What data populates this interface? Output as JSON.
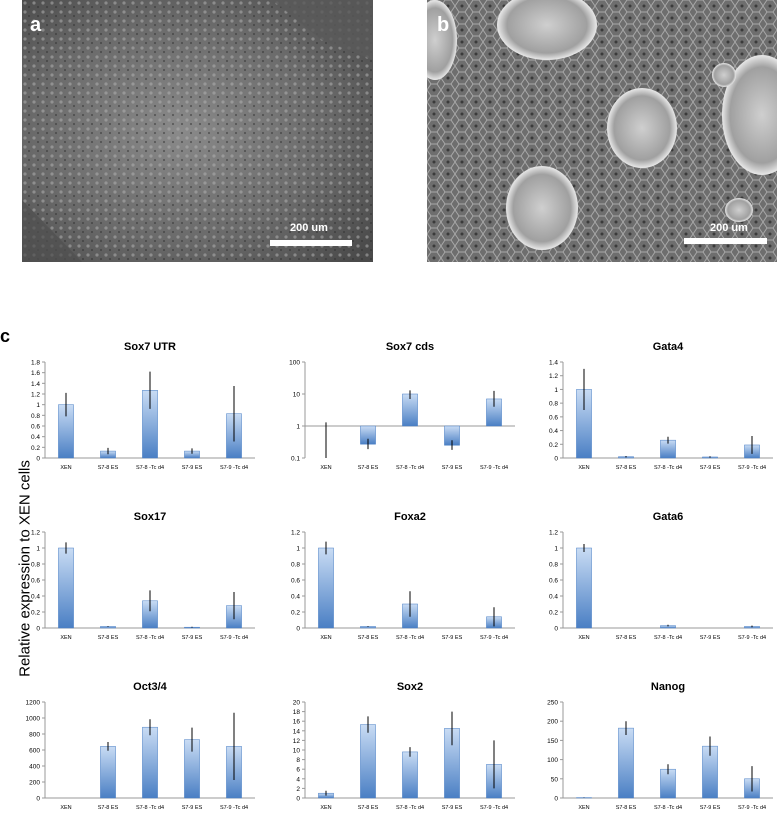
{
  "figure": {
    "panel_a": {
      "letter": "a",
      "scale_label": "200 um"
    },
    "panel_b": {
      "letter": "b",
      "scale_label": "200 um"
    },
    "panel_c": {
      "letter": "c"
    },
    "ylabel": "Relative expression to XEN cells",
    "colors": {
      "bar_top": "#c9dcf4",
      "bar_bottom": "#4a7fc4",
      "error_bar": "#000000",
      "axis": "#999999"
    }
  },
  "chart_data": [
    {
      "type": "bar",
      "title": "Sox7 UTR",
      "categories": [
        "XEN",
        "S7-8 ES",
        "S7-8 -Tc d4",
        "S7-9 ES",
        "S7-9 -Tc d4"
      ],
      "values": [
        1.0,
        0.13,
        1.27,
        0.13,
        0.83
      ],
      "errors": [
        0.22,
        0.06,
        0.35,
        0.05,
        0.52
      ],
      "ylim": [
        0,
        1.8
      ],
      "yticks": [
        0,
        0.2,
        0.4,
        0.6,
        0.8,
        1,
        1.2,
        1.4,
        1.6,
        1.8
      ],
      "ytick_labels": [
        "0",
        "0.2",
        "0.4",
        "0.6",
        "0.8",
        "1",
        "1.2",
        "1.4",
        "1.6",
        "1.8"
      ],
      "yscale": "linear"
    },
    {
      "type": "bar",
      "title": "Sox7 cds",
      "categories": [
        "XEN",
        "S7-8 ES",
        "S7-8 -Tc d4",
        "S7-9 ES",
        "S7-9 -Tc d4"
      ],
      "values": [
        1.0,
        0.27,
        10.0,
        0.25,
        7.0
      ],
      "errors_low": [
        0.0,
        0.19,
        7.0,
        0.18,
        4.0
      ],
      "errors_high": [
        1.3,
        0.4,
        13.0,
        0.36,
        12.5
      ],
      "ylim": [
        0.1,
        100
      ],
      "yticks": [
        0.1,
        1,
        10,
        100
      ],
      "ytick_labels": [
        "0.1",
        "1",
        "10",
        "100"
      ],
      "yscale": "log"
    },
    {
      "type": "bar",
      "title": "Gata4",
      "categories": [
        "XEN",
        "S7-8 ES",
        "S7-8 -Tc d4",
        "S7-9 ES",
        "S7-9 -Tc d4"
      ],
      "values": [
        1.0,
        0.02,
        0.26,
        0.015,
        0.19
      ],
      "errors": [
        0.3,
        0.01,
        0.05,
        0.01,
        0.13
      ],
      "ylim": [
        0,
        1.4
      ],
      "yticks": [
        0,
        0.2,
        0.4,
        0.6,
        0.8,
        1,
        1.2,
        1.4
      ],
      "ytick_labels": [
        "0",
        "0.2",
        "0.4",
        "0.6",
        "0.8",
        "1",
        "1.2",
        "1.4"
      ],
      "yscale": "linear"
    },
    {
      "type": "bar",
      "title": "Sox17",
      "categories": [
        "XEN",
        "S7-8 ES",
        "S7-8 -Tc d4",
        "S7-9 ES",
        "S7-9 -Tc d4"
      ],
      "values": [
        1.0,
        0.02,
        0.34,
        0.01,
        0.28
      ],
      "errors": [
        0.07,
        0.005,
        0.13,
        0.005,
        0.17
      ],
      "ylim": [
        0,
        1.2
      ],
      "yticks": [
        0,
        0.2,
        0.4,
        0.6,
        0.8,
        1,
        1.2
      ],
      "ytick_labels": [
        "0",
        "0.2",
        "0.4",
        "0.6",
        "0.8",
        "1",
        "1.2"
      ],
      "yscale": "linear"
    },
    {
      "type": "bar",
      "title": "Foxa2",
      "categories": [
        "XEN",
        "S7-8 ES",
        "S7-8 -Tc d4",
        "S7-9 ES",
        "S7-9 -Tc d4"
      ],
      "values": [
        1.0,
        0.02,
        0.3,
        0.0,
        0.14
      ],
      "errors": [
        0.08,
        0.005,
        0.16,
        0.0,
        0.12
      ],
      "ylim": [
        0,
        1.2
      ],
      "yticks": [
        0,
        0.2,
        0.4,
        0.6,
        0.8,
        1,
        1.2
      ],
      "ytick_labels": [
        "0",
        "0.2",
        "0.4",
        "0.6",
        "0.8",
        "1",
        "1.2"
      ],
      "yscale": "linear"
    },
    {
      "type": "bar",
      "title": "Gata6",
      "categories": [
        "XEN",
        "S7-8 ES",
        "S7-8 -Tc d4",
        "S7-9 ES",
        "S7-9 -Tc d4"
      ],
      "values": [
        1.0,
        0.0,
        0.03,
        0.0,
        0.02
      ],
      "errors": [
        0.05,
        0.0,
        0.01,
        0.0,
        0.01
      ],
      "ylim": [
        0,
        1.2
      ],
      "yticks": [
        0,
        0.2,
        0.4,
        0.6,
        0.8,
        1,
        1.2
      ],
      "ytick_labels": [
        "0",
        "0.2",
        "0.4",
        "0.6",
        "0.8",
        "1",
        "1.2"
      ],
      "yscale": "linear"
    },
    {
      "type": "bar",
      "title": "Oct3/4",
      "categories": [
        "XEN",
        "S7-8 ES",
        "S7-8 -Tc d4",
        "S7-9 ES",
        "S7-9 -Tc d4"
      ],
      "values": [
        0,
        645,
        885,
        730,
        645
      ],
      "errors": [
        0,
        55,
        100,
        150,
        420
      ],
      "ylim": [
        0,
        1200
      ],
      "yticks": [
        0,
        200,
        400,
        600,
        800,
        1000,
        1200
      ],
      "ytick_labels": [
        "0",
        "200",
        "400",
        "600",
        "800",
        "1000",
        "1200"
      ],
      "yscale": "linear"
    },
    {
      "type": "bar",
      "title": "Sox2",
      "categories": [
        "XEN",
        "S7-8 ES",
        "S7-8 -Tc d4",
        "S7-9 ES",
        "S7-9 -Tc d4"
      ],
      "values": [
        1.0,
        15.3,
        9.6,
        14.5,
        7.0
      ],
      "errors": [
        0.5,
        1.7,
        1.0,
        3.5,
        5.0
      ],
      "ylim": [
        0,
        20
      ],
      "yticks": [
        0,
        2,
        4,
        6,
        8,
        10,
        12,
        14,
        16,
        18,
        20
      ],
      "ytick_labels": [
        "0",
        "2",
        "4",
        "6",
        "8",
        "10",
        "12",
        "14",
        "16",
        "18",
        "20"
      ],
      "yscale": "linear"
    },
    {
      "type": "bar",
      "title": "Nanog",
      "categories": [
        "XEN",
        "S7-8 ES",
        "S7-8 -Tc d4",
        "S7-9 ES",
        "S7-9 -Tc d4"
      ],
      "values": [
        1.0,
        182,
        75,
        135,
        50
      ],
      "errors": [
        0.5,
        18,
        13,
        25,
        33
      ],
      "ylim": [
        0,
        250
      ],
      "yticks": [
        0,
        50,
        100,
        150,
        200,
        250
      ],
      "ytick_labels": [
        "0",
        "50",
        "100",
        "150",
        "200",
        "250"
      ],
      "yscale": "linear"
    }
  ]
}
